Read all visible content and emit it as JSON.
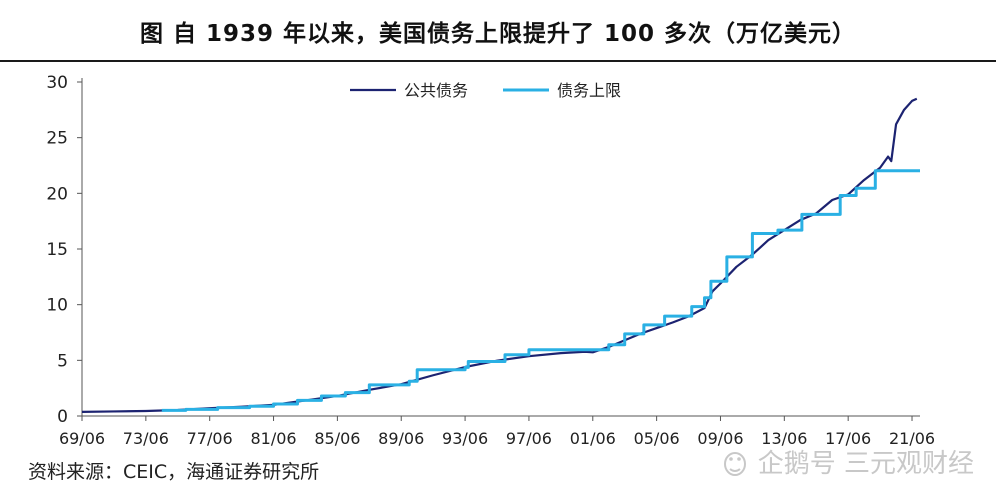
{
  "title": "图 自 1939 年以来，美国债务上限提升了 100 多次（万亿美元）",
  "source": "资料来源：CEIC，海通证券研究所",
  "watermark": "企鹅号 三元观财经",
  "watermark_icon": "penguin-icon",
  "colors": {
    "debt": "#1c2371",
    "ceiling": "#2ab0e4",
    "axis": "#555555"
  },
  "chart_data": {
    "type": "line",
    "title": "自 1939 年以来，美国债务上限提升了 100 多次（万亿美元）",
    "xlabel": "",
    "ylabel": "",
    "ylim": [
      0,
      30
    ],
    "yticks": [
      0,
      5,
      10,
      15,
      20,
      25,
      30
    ],
    "xlim": [
      1969.5,
      2022.0
    ],
    "xticks": [
      "69/06",
      "73/06",
      "77/06",
      "81/06",
      "85/06",
      "89/06",
      "93/06",
      "97/06",
      "01/06",
      "05/06",
      "09/06",
      "13/06",
      "17/06",
      "21/06"
    ],
    "xtick_values": [
      1969.5,
      1973.5,
      1977.5,
      1981.5,
      1985.5,
      1989.5,
      1993.5,
      1997.5,
      2001.5,
      2005.5,
      2009.5,
      2013.5,
      2017.5,
      2021.5
    ],
    "legend": {
      "position": "top-center"
    },
    "series": [
      {
        "name": "公共债务",
        "points": [
          [
            1969.5,
            0.37
          ],
          [
            1971.5,
            0.41
          ],
          [
            1973.5,
            0.45
          ],
          [
            1975.5,
            0.54
          ],
          [
            1977.5,
            0.7
          ],
          [
            1979.5,
            0.83
          ],
          [
            1981.5,
            1.0
          ],
          [
            1983.5,
            1.4
          ],
          [
            1985.5,
            1.8
          ],
          [
            1987.5,
            2.35
          ],
          [
            1989.5,
            2.86
          ],
          [
            1991.5,
            3.66
          ],
          [
            1993.5,
            4.4
          ],
          [
            1995.5,
            4.97
          ],
          [
            1997.5,
            5.37
          ],
          [
            1999.5,
            5.65
          ],
          [
            2001.0,
            5.77
          ],
          [
            2001.5,
            5.72
          ],
          [
            2002.5,
            6.2
          ],
          [
            2003.5,
            6.8
          ],
          [
            2004.5,
            7.4
          ],
          [
            2005.5,
            7.9
          ],
          [
            2006.5,
            8.4
          ],
          [
            2007.5,
            8.95
          ],
          [
            2008.5,
            9.7
          ],
          [
            2009.0,
            11.2
          ],
          [
            2009.5,
            11.9
          ],
          [
            2010.5,
            13.4
          ],
          [
            2011.5,
            14.5
          ],
          [
            2012.5,
            15.8
          ],
          [
            2013.5,
            16.7
          ],
          [
            2014.5,
            17.6
          ],
          [
            2015.5,
            18.2
          ],
          [
            2016.5,
            19.4
          ],
          [
            2017.5,
            19.9
          ],
          [
            2018.5,
            21.2
          ],
          [
            2019.5,
            22.3
          ],
          [
            2020.0,
            23.3
          ],
          [
            2020.2,
            22.9
          ],
          [
            2020.5,
            26.2
          ],
          [
            2021.0,
            27.5
          ],
          [
            2021.5,
            28.3
          ],
          [
            2021.8,
            28.5
          ]
        ]
      },
      {
        "name": "债务上限",
        "points": [
          [
            1974.5,
            0.5
          ],
          [
            1976.0,
            0.6
          ],
          [
            1978.0,
            0.75
          ],
          [
            1980.0,
            0.88
          ],
          [
            1981.5,
            1.08
          ],
          [
            1983.0,
            1.4
          ],
          [
            1984.5,
            1.8
          ],
          [
            1986.0,
            2.1
          ],
          [
            1987.5,
            2.8
          ],
          [
            1990.0,
            3.12
          ],
          [
            1990.5,
            4.15
          ],
          [
            1993.5,
            4.37
          ],
          [
            1993.7,
            4.9
          ],
          [
            1996.0,
            5.5
          ],
          [
            1997.5,
            5.95
          ],
          [
            2002.5,
            6.4
          ],
          [
            2003.5,
            7.38
          ],
          [
            2004.7,
            8.18
          ],
          [
            2006.0,
            8.97
          ],
          [
            2007.7,
            9.82
          ],
          [
            2008.5,
            10.62
          ],
          [
            2008.9,
            12.1
          ],
          [
            2009.9,
            14.29
          ],
          [
            2011.5,
            16.39
          ],
          [
            2013.1,
            16.7
          ],
          [
            2014.6,
            18.11
          ],
          [
            2017.0,
            19.8
          ],
          [
            2018.0,
            20.46
          ],
          [
            2019.2,
            22.03
          ],
          [
            2022.0,
            22.03
          ]
        ]
      }
    ]
  }
}
